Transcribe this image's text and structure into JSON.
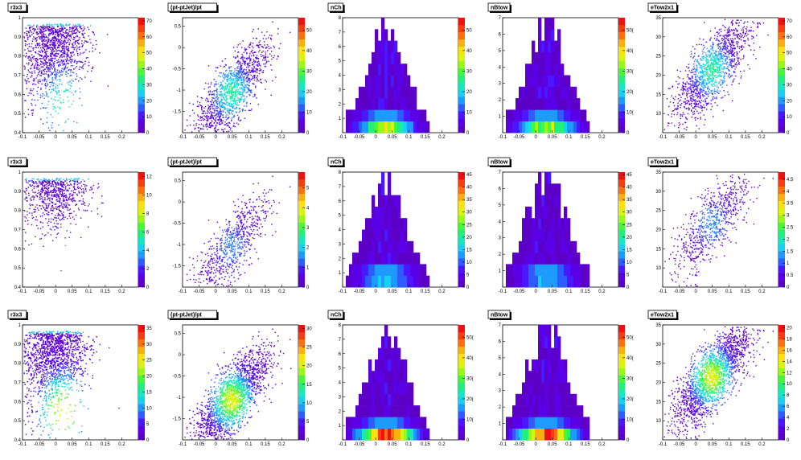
{
  "grid": {
    "rows": 3,
    "cols": 5
  },
  "palette": [
    "#5c00c8",
    "#5a00e6",
    "#4a18ff",
    "#2f5cff",
    "#1e9bff",
    "#18d0f0",
    "#18e8c0",
    "#22f07a",
    "#48f838",
    "#98f818",
    "#dcf210",
    "#fce010",
    "#fcb010",
    "#fc7010",
    "#f83c10",
    "#f01010"
  ],
  "panels": [
    {
      "title": "r3x3",
      "type": "scatter",
      "colorbar_ticks": [
        "0",
        "10",
        "20",
        "30",
        "40",
        "50",
        "60",
        "70"
      ],
      "cmax": 72
    },
    {
      "title": "(pt-ptJet)/pt",
      "type": "scatter",
      "colorbar_ticks": [
        "0",
        "10",
        "20",
        "30",
        "40",
        "50"
      ],
      "cmax": 56
    },
    {
      "title": "nCh",
      "type": "hist",
      "colorbar_ticks": [
        "0",
        "10",
        "20",
        "30",
        "40",
        "50"
      ],
      "cmax": 56
    },
    {
      "title": "nBtow",
      "type": "hist",
      "colorbar_ticks": [
        "0",
        "10(",
        "20(",
        "30(",
        "40(",
        "50("
      ],
      "cmax": 56
    },
    {
      "title": "eTow2x1",
      "type": "scatter",
      "colorbar_ticks": [
        "0",
        "10",
        "20",
        "30",
        "40",
        "50",
        "60",
        "70"
      ],
      "cmax": 72
    },
    {
      "title": "r3x3",
      "type": "scatter",
      "colorbar_ticks": [
        "0",
        "2",
        "4",
        "6",
        "8",
        "10",
        "12"
      ],
      "cmax": 12.5
    },
    {
      "title": "(pt-ptJet)/pt",
      "type": "scatter",
      "colorbar_ticks": [
        "0",
        "1",
        "2",
        "3",
        "4",
        "5"
      ],
      "cmax": 5.8
    },
    {
      "title": "nCh",
      "type": "hist",
      "colorbar_ticks": [
        "0",
        "5",
        "10",
        "15",
        "20",
        "25",
        "30",
        "35",
        "40",
        "45"
      ],
      "cmax": 46
    },
    {
      "title": "nBtow",
      "type": "hist",
      "colorbar_ticks": [
        "0",
        "5",
        "10",
        "15",
        "20",
        "25",
        "30",
        "35",
        "40",
        "45"
      ],
      "cmax": 46
    },
    {
      "title": "eTow2x1",
      "type": "scatter",
      "colorbar_ticks": [
        "0",
        "0.5",
        "1",
        "1.5",
        "2",
        "2.5",
        "3",
        "3.5",
        "4",
        "4.5"
      ],
      "cmax": 4.8
    },
    {
      "title": "r3x3",
      "type": "scatter",
      "colorbar_ticks": [
        "0",
        "5",
        "10",
        "15",
        "20",
        "25",
        "30",
        "35"
      ],
      "cmax": 36
    },
    {
      "title": "(pt-ptJet)/pt",
      "type": "scatter",
      "colorbar_ticks": [
        "0",
        "5",
        "10",
        "15",
        "20",
        "25",
        "30"
      ],
      "cmax": 31
    },
    {
      "title": "nCh",
      "type": "hist",
      "colorbar_ticks": [
        "0",
        "10(",
        "20(",
        "30(",
        "40(",
        "50("
      ],
      "cmax": 56
    },
    {
      "title": "nBtow",
      "type": "hist",
      "colorbar_ticks": [
        "0",
        "10(",
        "20(",
        "30(",
        "40(",
        "50("
      ],
      "cmax": 56
    },
    {
      "title": "eTow2x1",
      "type": "scatter",
      "colorbar_ticks": [
        "0",
        "2",
        "4",
        "6",
        "8",
        "10",
        "12",
        "14",
        "16",
        "18",
        "20"
      ],
      "cmax": 20.5
    }
  ],
  "chart_data": [
    {
      "type": "heatmap",
      "title": "r3x3",
      "x_ticks": [
        "-0.1",
        "-0.05",
        "0",
        "0.05",
        "0.1",
        "0.15",
        "0.2"
      ],
      "y_ticks": [
        "0.4",
        "0.5",
        "0.6",
        "0.7",
        "0.8",
        "0.9",
        "1"
      ],
      "xlim": [
        -0.1,
        0.25
      ],
      "ylim": [
        0.4,
        1.0
      ]
    },
    {
      "type": "heatmap",
      "title": "(pt-ptJet)/pt",
      "x_ticks": [
        "-0.1",
        "-0.05",
        "0",
        "0.05",
        "0.1",
        "0.15",
        "0.2"
      ],
      "y_ticks": [
        "-1.5",
        "-1",
        "-0.5",
        "0",
        "0.5"
      ],
      "xlim": [
        -0.1,
        0.25
      ],
      "ylim": [
        -2,
        0.7
      ]
    },
    {
      "type": "heatmap",
      "title": "nCh",
      "x_ticks": [
        "-0.1",
        "-0.05",
        "0",
        "0.05",
        "0.1",
        "0.15",
        "0.2"
      ],
      "y_ticks": [
        "1",
        "2",
        "3",
        "4",
        "5",
        "6",
        "7",
        "8"
      ],
      "xlim": [
        -0.1,
        0.25
      ],
      "ylim": [
        0,
        8
      ]
    },
    {
      "type": "heatmap",
      "title": "nBtow",
      "x_ticks": [
        "-0.1",
        "-0.05",
        "0",
        "0.05",
        "0.1",
        "0.15",
        "0.2"
      ],
      "y_ticks": [
        "1",
        "2",
        "3",
        "4",
        "5",
        "6",
        "7"
      ],
      "xlim": [
        -0.1,
        0.25
      ],
      "ylim": [
        0,
        7
      ]
    },
    {
      "type": "heatmap",
      "title": "eTow2x1",
      "x_ticks": [
        "-0.1",
        "-0.05",
        "0",
        "0.05",
        "0.1",
        "0.15",
        "0.2"
      ],
      "y_ticks": [
        "10",
        "15",
        "20",
        "25",
        "30",
        "35"
      ],
      "xlim": [
        -0.1,
        0.25
      ],
      "ylim": [
        5,
        35
      ]
    },
    {
      "type": "heatmap",
      "title": "r3x3",
      "x_ticks": [
        "-0.1",
        "-0.05",
        "0",
        "0.05",
        "0.1",
        "0.15",
        "0.2"
      ],
      "y_ticks": [
        "0.4",
        "0.5",
        "0.6",
        "0.7",
        "0.8",
        "0.9",
        "1"
      ],
      "xlim": [
        -0.1,
        0.25
      ],
      "ylim": [
        0.4,
        1.0
      ]
    },
    {
      "type": "heatmap",
      "title": "(pt-ptJet)/pt",
      "x_ticks": [
        "-0.1",
        "-0.05",
        "0",
        "0.05",
        "0.1",
        "0.15",
        "0.2"
      ],
      "y_ticks": [
        "-1.5",
        "-1",
        "-0.5",
        "0",
        "0.5"
      ],
      "xlim": [
        -0.1,
        0.25
      ],
      "ylim": [
        -2,
        0.7
      ]
    },
    {
      "type": "heatmap",
      "title": "nCh",
      "x_ticks": [
        "-0.1",
        "-0.05",
        "0",
        "0.05",
        "0.1",
        "0.15",
        "0.2"
      ],
      "y_ticks": [
        "1",
        "2",
        "3",
        "4",
        "5",
        "6",
        "7",
        "8"
      ],
      "xlim": [
        -0.1,
        0.25
      ],
      "ylim": [
        0,
        8
      ]
    },
    {
      "type": "heatmap",
      "title": "nBtow",
      "x_ticks": [
        "-0.1",
        "-0.05",
        "0",
        "0.05",
        "0.1",
        "0.15",
        "0.2"
      ],
      "y_ticks": [
        "1",
        "2",
        "3",
        "4",
        "5",
        "6",
        "7"
      ],
      "xlim": [
        -0.1,
        0.25
      ],
      "ylim": [
        0,
        7
      ]
    },
    {
      "type": "heatmap",
      "title": "eTow2x1",
      "x_ticks": [
        "-0.1",
        "-0.05",
        "0",
        "0.05",
        "0.1",
        "0.15",
        "0.2"
      ],
      "y_ticks": [
        "10",
        "15",
        "20",
        "25",
        "30",
        "35"
      ],
      "xlim": [
        -0.1,
        0.25
      ],
      "ylim": [
        5,
        35
      ]
    },
    {
      "type": "heatmap",
      "title": "r3x3",
      "x_ticks": [
        "-0.1",
        "-0.05",
        "0",
        "0.05",
        "0.1",
        "0.15",
        "0.2"
      ],
      "y_ticks": [
        "0.4",
        "0.5",
        "0.6",
        "0.7",
        "0.8",
        "0.9",
        "1"
      ],
      "xlim": [
        -0.1,
        0.25
      ],
      "ylim": [
        0.4,
        1.0
      ]
    },
    {
      "type": "heatmap",
      "title": "(pt-ptJet)/pt",
      "x_ticks": [
        "-0.1",
        "-0.05",
        "0",
        "0.05",
        "0.1",
        "0.15",
        "0.2"
      ],
      "y_ticks": [
        "-1.5",
        "-1",
        "-0.5",
        "0",
        "0.5"
      ],
      "xlim": [
        -0.1,
        0.25
      ],
      "ylim": [
        -2,
        0.7
      ]
    },
    {
      "type": "heatmap",
      "title": "nCh",
      "x_ticks": [
        "-0.1",
        "-0.05",
        "0",
        "0.05",
        "0.1",
        "0.15",
        "0.2"
      ],
      "y_ticks": [
        "1",
        "2",
        "3",
        "4",
        "5",
        "6",
        "7",
        "8"
      ],
      "xlim": [
        -0.1,
        0.25
      ],
      "ylim": [
        0,
        8
      ]
    },
    {
      "type": "heatmap",
      "title": "nBtow",
      "x_ticks": [
        "-0.1",
        "-0.05",
        "0",
        "0.05",
        "0.1",
        "0.15",
        "0.2"
      ],
      "y_ticks": [
        "1",
        "2",
        "3",
        "4",
        "5",
        "6",
        "7"
      ],
      "xlim": [
        -0.1,
        0.25
      ],
      "ylim": [
        0,
        7
      ]
    },
    {
      "type": "heatmap",
      "title": "eTow2x1",
      "x_ticks": [
        "-0.1",
        "-0.05",
        "0",
        "0.05",
        "0.1",
        "0.15",
        "0.2"
      ],
      "y_ticks": [
        "10",
        "15",
        "20",
        "25",
        "30",
        "35"
      ],
      "xlim": [
        -0.1,
        0.25
      ],
      "ylim": [
        5,
        35
      ]
    }
  ]
}
